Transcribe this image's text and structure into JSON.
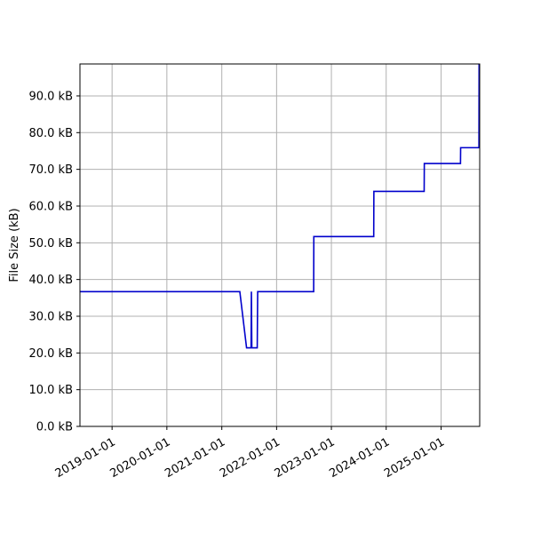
{
  "chart_data": {
    "type": "line",
    "title": "",
    "xlabel": "",
    "ylabel": "File Size (kB)",
    "x_axis_kind": "date",
    "xlim": [
      "2018-06-01",
      "2025-09-15"
    ],
    "ylim": [
      0,
      98.7
    ],
    "grid": true,
    "legend": "none",
    "x_ticks": [
      "2019-01-01",
      "2020-01-01",
      "2021-01-01",
      "2022-01-01",
      "2023-01-01",
      "2024-01-01",
      "2025-01-01"
    ],
    "y_ticks": [
      0,
      10,
      20,
      30,
      40,
      50,
      60,
      70,
      80,
      90
    ],
    "y_tick_labels": [
      "0.0 kB",
      "10.0 kB",
      "20.0 kB",
      "30.0 kB",
      "40.0 kB",
      "50.0 kB",
      "60.0 kB",
      "70.0 kB",
      "80.0 kB",
      "90.0 kB"
    ],
    "series": [
      {
        "color": "#0000cc",
        "points": [
          [
            "2018-06-01",
            36.7
          ],
          [
            "2021-05-01",
            36.7
          ],
          [
            "2021-06-15",
            21.4
          ],
          [
            "2021-07-15",
            21.4
          ],
          [
            "2021-07-17",
            36.7
          ],
          [
            "2021-07-20",
            21.4
          ],
          [
            "2021-08-25",
            21.4
          ],
          [
            "2021-08-28",
            36.7
          ],
          [
            "2022-09-05",
            36.7
          ],
          [
            "2022-09-06",
            51.7
          ],
          [
            "2023-10-10",
            51.7
          ],
          [
            "2023-10-11",
            64.0
          ],
          [
            "2024-09-10",
            64.0
          ],
          [
            "2024-09-11",
            71.6
          ],
          [
            "2025-05-10",
            71.6
          ],
          [
            "2025-05-11",
            75.9
          ],
          [
            "2025-09-10",
            75.9
          ],
          [
            "2025-09-11",
            98.7
          ]
        ]
      }
    ]
  }
}
